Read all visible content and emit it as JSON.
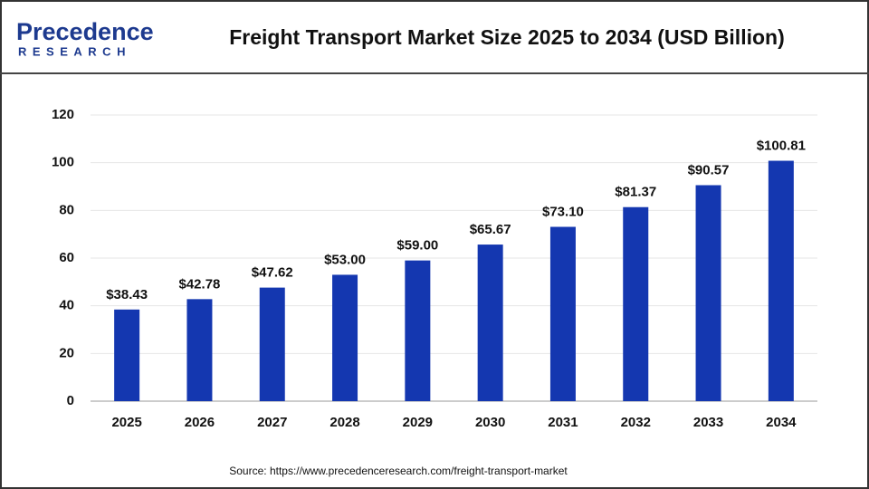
{
  "logo": {
    "name": "Precedence",
    "tagline": "RESEARCH"
  },
  "chart_data": {
    "type": "bar",
    "title": "Freight Transport Market Size 2025 to 2034 (USD Billion)",
    "categories": [
      "2025",
      "2026",
      "2027",
      "2028",
      "2029",
      "2030",
      "2031",
      "2032",
      "2033",
      "2034"
    ],
    "values": [
      38.43,
      42.78,
      47.62,
      53.0,
      59.0,
      65.67,
      73.1,
      81.37,
      90.57,
      100.81
    ],
    "value_labels": [
      "$38.43",
      "$42.78",
      "$47.62",
      "$53.00",
      "$59.00",
      "$65.67",
      "$73.10",
      "$81.37",
      "$90.57",
      "$100.81"
    ],
    "color": "#1437b0",
    "ylim": [
      0,
      120
    ],
    "yticks": [
      0,
      20,
      40,
      60,
      80,
      100,
      120
    ],
    "grid": true,
    "source": "Source: https://www.precedenceresearch.com/freight-transport-market"
  }
}
